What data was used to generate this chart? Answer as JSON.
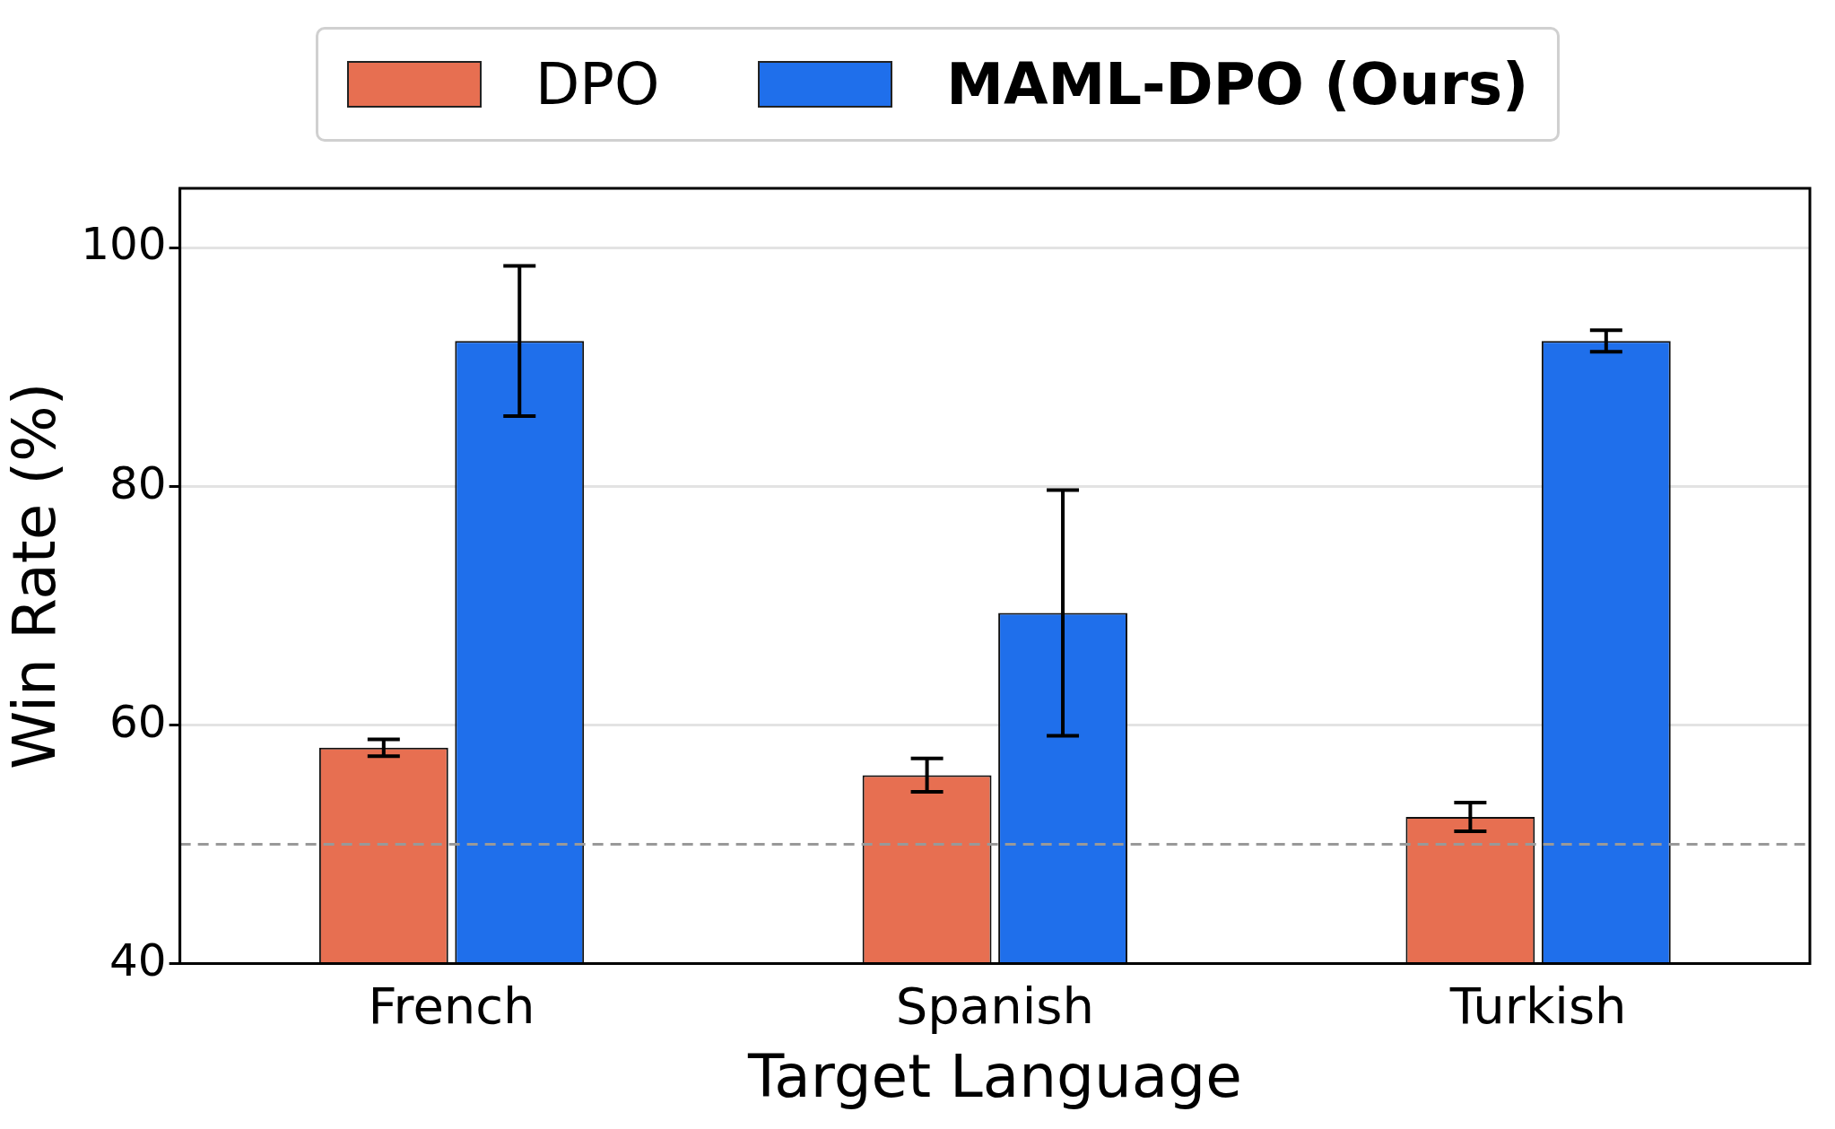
{
  "chart_data": {
    "type": "bar",
    "xlabel": "Target Language",
    "ylabel": "Win Rate (%)",
    "categories": [
      "French",
      "Spanish",
      "Turkish"
    ],
    "series": [
      {
        "name": "DPO",
        "color": "#e76f51",
        "values": [
          58.1,
          55.8,
          52.3
        ],
        "errors": [
          0.7,
          1.4,
          1.2
        ]
      },
      {
        "name": "MAML-DPO (Ours)",
        "color": "#1f6feb",
        "values": [
          92.2,
          69.4,
          92.2
        ],
        "errors": [
          6.3,
          10.3,
          0.9
        ]
      }
    ],
    "ylim": [
      40,
      105
    ],
    "yticks": [
      40,
      60,
      80,
      100
    ],
    "grid": "y",
    "legend": "top",
    "ref_lines": [
      {
        "axis": "y",
        "value": 50,
        "color": "#999999",
        "line_style": "dashed"
      }
    ]
  }
}
